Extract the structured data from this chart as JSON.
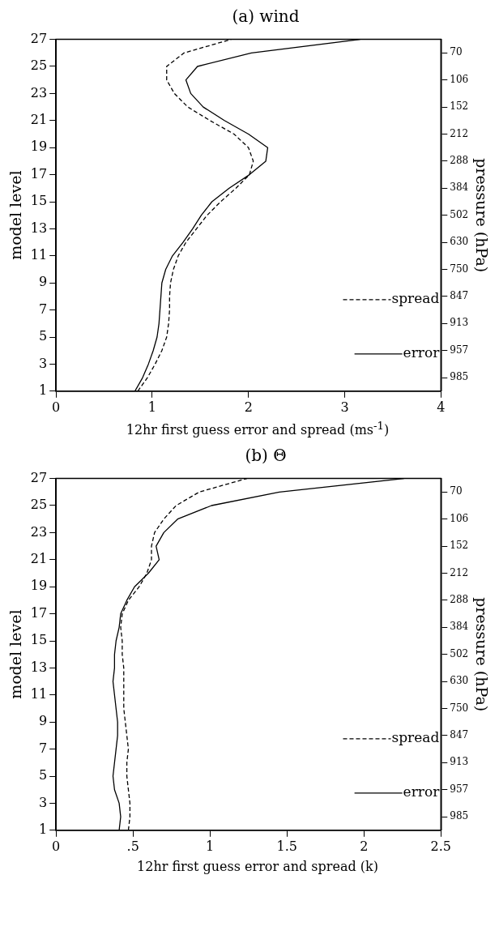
{
  "chart_data": [
    {
      "type": "line",
      "title": "(a) wind",
      "xlabel": "12hr first guess error and spread (ms$^{-1}$)",
      "ylabel": "model level",
      "y2label": "pressure (hPa)",
      "xlim": [
        0,
        4
      ],
      "xticks": [
        0,
        1,
        2,
        3,
        4
      ],
      "ylim": [
        1,
        27
      ],
      "yticks": [
        1,
        3,
        5,
        7,
        9,
        11,
        13,
        15,
        17,
        19,
        21,
        23,
        25,
        27
      ],
      "y2_categories": [
        null,
        "70",
        null,
        "106",
        null,
        "152",
        null,
        "212",
        null,
        "288",
        null,
        "384",
        null,
        "502",
        null,
        "630",
        null,
        "750",
        null,
        "847",
        null,
        "913",
        null,
        "957",
        null,
        "985",
        null
      ],
      "grid": false,
      "legend": "bottom right",
      "marker": "none",
      "series": [
        {
          "name": "spread",
          "color": "#000000",
          "line_style": "dashed",
          "x": [
            0.85,
            0.95,
            1.03,
            1.1,
            1.15,
            1.17,
            1.18,
            1.18,
            1.19,
            1.22,
            1.27,
            1.35,
            1.46,
            1.57,
            1.71,
            1.87,
            2.01,
            2.05,
            2.0,
            1.85,
            1.6,
            1.37,
            1.23,
            1.15,
            1.15,
            1.33,
            1.82
          ],
          "values": [
            1,
            2,
            3,
            4,
            5,
            6,
            7,
            8,
            9,
            10,
            11,
            12,
            13,
            14,
            15,
            16,
            17,
            18,
            19,
            20,
            21,
            22,
            23,
            24,
            25,
            26,
            27
          ]
        },
        {
          "name": "error",
          "color": "#000000",
          "line_style": "solid",
          "x": [
            0.82,
            0.9,
            0.96,
            1.01,
            1.05,
            1.07,
            1.08,
            1.09,
            1.1,
            1.14,
            1.21,
            1.32,
            1.42,
            1.51,
            1.62,
            1.8,
            2.01,
            2.18,
            2.2,
            2.0,
            1.75,
            1.53,
            1.4,
            1.35,
            1.47,
            2.03,
            3.16
          ],
          "values": [
            1,
            2,
            3,
            4,
            5,
            6,
            7,
            8,
            9,
            10,
            11,
            12,
            13,
            14,
            15,
            16,
            17,
            18,
            19,
            20,
            21,
            22,
            23,
            24,
            25,
            26,
            27
          ]
        }
      ]
    },
    {
      "type": "line",
      "title": "(b) Θ",
      "xlabel": "12hr first guess error and spread (k)",
      "ylabel": "model level",
      "y2label": "pressure (hPa)",
      "xlim": [
        0,
        2.5
      ],
      "xticks": [
        0,
        {
          "value": 0.5,
          "label": ".5"
        },
        1,
        1.5,
        2,
        2.5
      ],
      "ylim": [
        1,
        27
      ],
      "yticks": [
        1,
        3,
        5,
        7,
        9,
        11,
        13,
        15,
        17,
        19,
        21,
        23,
        25,
        27
      ],
      "y2_categories": [
        null,
        "70",
        null,
        "106",
        null,
        "152",
        null,
        "212",
        null,
        "288",
        null,
        "384",
        null,
        "502",
        null,
        "630",
        null,
        "750",
        null,
        "847",
        null,
        "913",
        null,
        "957",
        null,
        "985",
        null
      ],
      "grid": false,
      "legend": "bottom right",
      "marker": "none",
      "series": [
        {
          "name": "spread",
          "color": "#000000",
          "line_style": "dashed",
          "x": [
            0.47,
            0.48,
            0.48,
            0.47,
            0.46,
            0.46,
            0.47,
            0.46,
            0.45,
            0.44,
            0.44,
            0.44,
            0.44,
            0.43,
            0.43,
            0.42,
            0.43,
            0.47,
            0.54,
            0.59,
            0.62,
            0.62,
            0.64,
            0.7,
            0.78,
            0.93,
            1.24
          ],
          "values": [
            1,
            2,
            3,
            4,
            5,
            6,
            7,
            8,
            9,
            10,
            11,
            12,
            13,
            14,
            15,
            16,
            17,
            18,
            19,
            20,
            21,
            22,
            23,
            24,
            25,
            26,
            27
          ]
        },
        {
          "name": "error",
          "color": "#000000",
          "line_style": "solid",
          "x": [
            0.41,
            0.42,
            0.41,
            0.38,
            0.37,
            0.38,
            0.39,
            0.4,
            0.4,
            0.39,
            0.38,
            0.37,
            0.38,
            0.38,
            0.39,
            0.41,
            0.42,
            0.46,
            0.51,
            0.6,
            0.67,
            0.65,
            0.7,
            0.79,
            1.01,
            1.45,
            2.26
          ],
          "values": [
            1,
            2,
            3,
            4,
            5,
            6,
            7,
            8,
            9,
            10,
            11,
            12,
            13,
            14,
            15,
            16,
            17,
            18,
            19,
            20,
            21,
            22,
            23,
            24,
            25,
            26,
            27
          ]
        }
      ]
    }
  ]
}
